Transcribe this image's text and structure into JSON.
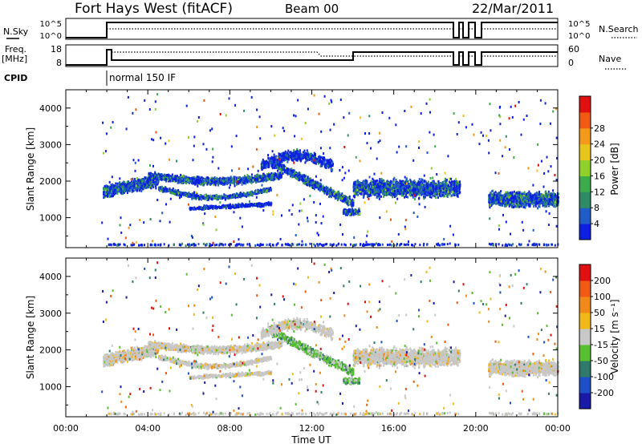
{
  "header": {
    "title": "Fort Hays West (fitACF)",
    "beam": "Beam 00",
    "date": "22/Mar/2011"
  },
  "top_panels": {
    "nsky": {
      "left_label": "N.Sky",
      "right_label": "N.Search",
      "left_ticks": [
        "10^5",
        "10^0"
      ],
      "right_ticks": [
        "10^5",
        "10^0"
      ]
    },
    "freq": {
      "left_label_line1": "Freq.",
      "left_label_line2": "[MHz]",
      "right_label": "Nave",
      "left_ticks": [
        "18",
        "8"
      ],
      "right_ticks": [
        "60",
        "0"
      ]
    },
    "cpid": {
      "label": "CPID",
      "mode_text": "normal 150 IF"
    }
  },
  "chart_data": [
    {
      "type": "heatmap",
      "name": "power",
      "ylabel": "Slant Range [km]",
      "yticks": [
        "1000",
        "2000",
        "3000",
        "4000"
      ],
      "ylim": [
        180,
        4500
      ],
      "xlim_hours": [
        0,
        24
      ],
      "colorbar": {
        "label": "Power [dB]",
        "ticks": [
          "4",
          "8",
          "12",
          "16",
          "20",
          "24",
          "28"
        ],
        "colors": [
          "#0d1fe0",
          "#1f5cc7",
          "#2f8a66",
          "#3daa4c",
          "#8fd12a",
          "#e8c51a",
          "#f49a1a",
          "#f05a14",
          "#e01010"
        ]
      }
    },
    {
      "type": "heatmap",
      "name": "velocity",
      "ylabel": "Slant Range [km]",
      "yticks": [
        "1000",
        "2000",
        "3000",
        "4000"
      ],
      "ylim": [
        180,
        4500
      ],
      "xlim_hours": [
        0,
        24
      ],
      "xlabel": "Time UT",
      "xticks": [
        "00:00",
        "04:00",
        "08:00",
        "12:00",
        "16:00",
        "20:00",
        "00:00"
      ],
      "colorbar": {
        "label": "Velocity [m s⁻¹]",
        "ticks": [
          "200",
          "100",
          "50",
          "15",
          "-15",
          "-50",
          "-100",
          "-200"
        ],
        "colors": [
          "#1a1aa8",
          "#1f4fc8",
          "#2f7a6a",
          "#58c030",
          "#c8c8c8",
          "#f2b81a",
          "#f08a1a",
          "#f05a14",
          "#e01010"
        ]
      }
    }
  ]
}
